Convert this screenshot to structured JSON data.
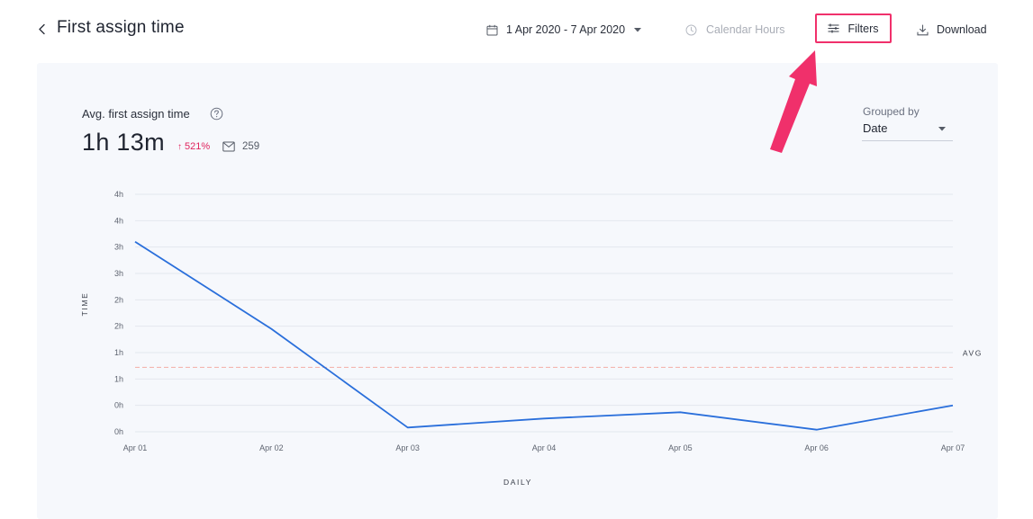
{
  "header": {
    "title": "First assign time",
    "date_range": "1 Apr 2020 - 7 Apr 2020",
    "calendar_hours": "Calendar Hours",
    "filters": "Filters",
    "download": "Download"
  },
  "metric": {
    "label": "Avg. first assign time",
    "value": "1h 13m",
    "trend": "521%",
    "count": "259"
  },
  "grouping": {
    "label": "Grouped by",
    "value": "Date"
  },
  "colors": {
    "accent": "#f0306b",
    "line": "#2a6fdb",
    "avg_line": "#f4b6b0",
    "trend_up": "#e0245e",
    "panel_bg": "#f6f8fc"
  },
  "icons": {
    "back": "chevron-left-icon",
    "calendar": "calendar-icon",
    "clock": "clock-icon",
    "filters": "sliders-icon",
    "download": "download-icon",
    "help": "help-circle-icon",
    "mail": "mail-icon",
    "trend": "arrow-up-icon"
  },
  "chart_data": {
    "type": "line",
    "x": [
      "Apr 01",
      "Apr 02",
      "Apr 03",
      "Apr 04",
      "Apr 05",
      "Apr 06",
      "Apr 07"
    ],
    "ytick_labels": [
      "0h",
      "0h",
      "1h",
      "1h",
      "2h",
      "2h",
      "3h",
      "3h",
      "4h",
      "4h"
    ],
    "series": [
      {
        "values": [
          3.6,
          1.95,
          0.08,
          0.25,
          0.37,
          0.04,
          0.5
        ]
      }
    ],
    "avg_value": 1.22,
    "avg_label": "AVG",
    "xlabel": "DAILY",
    "ylabel": "TIME",
    "ylim": [
      0,
      4.5
    ],
    "grid": true
  }
}
